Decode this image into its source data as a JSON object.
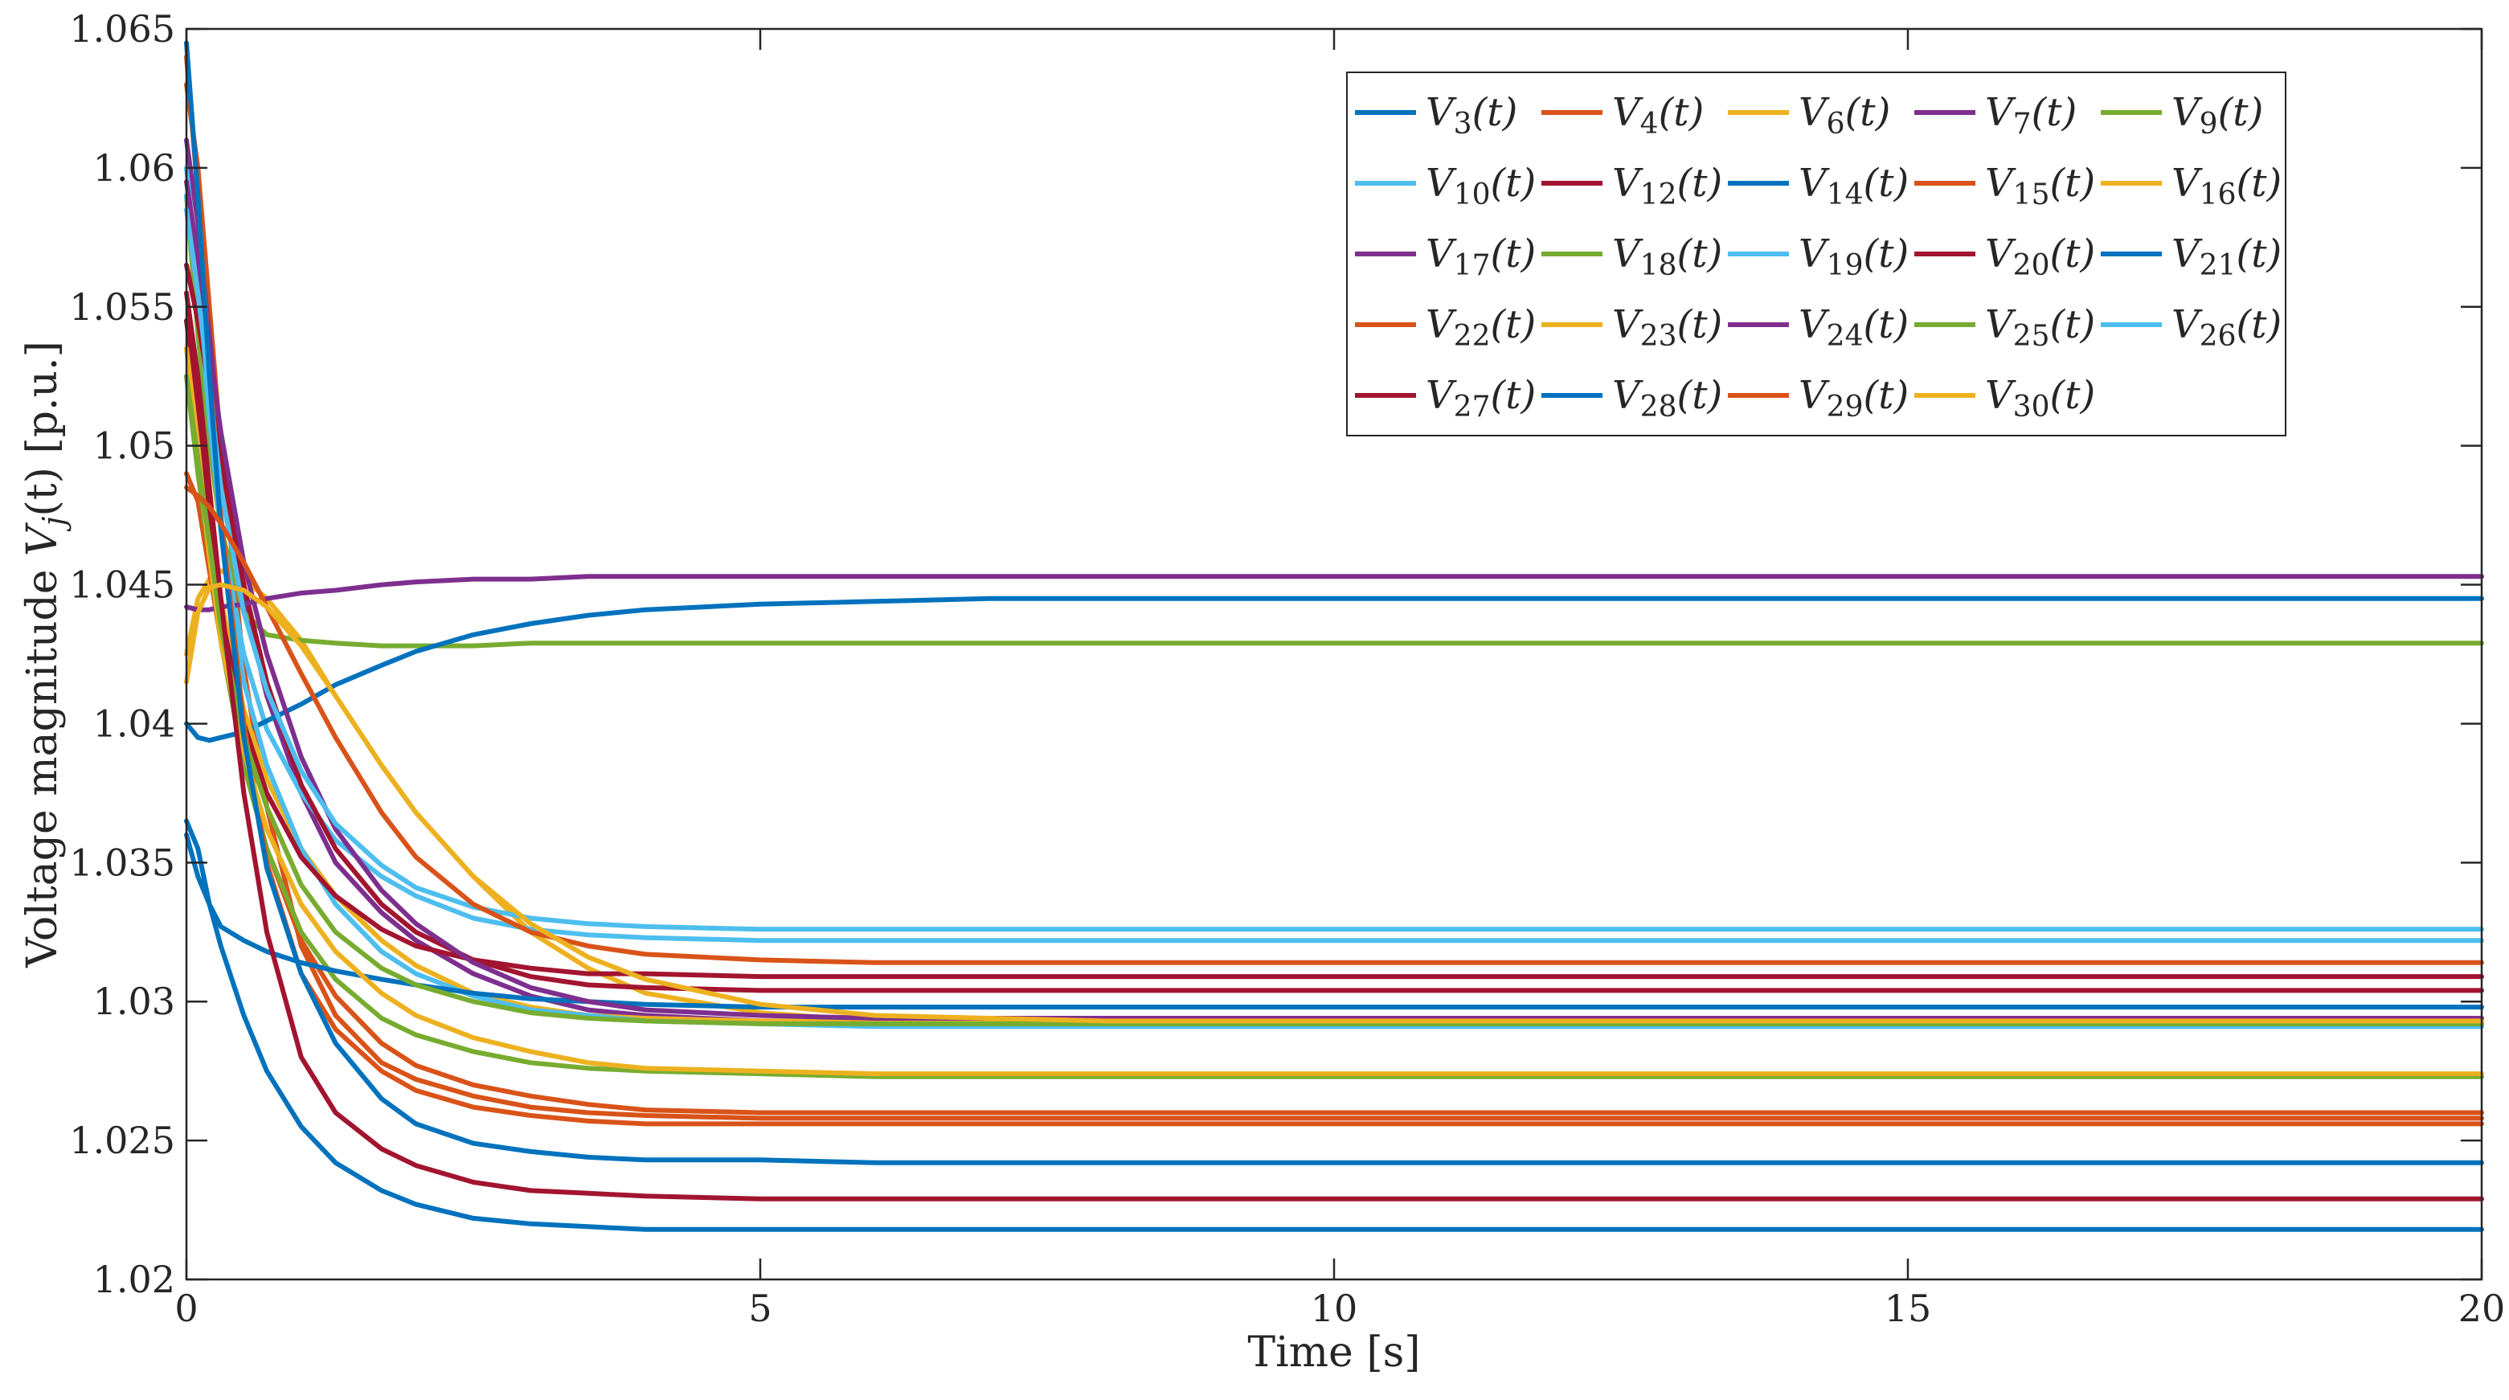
{
  "chart_data": {
    "type": "line",
    "title": "",
    "xlabel": "Time [s]",
    "ylabel": "Voltage magnitude V_j(t) [p.u.]",
    "ylabel_parts": {
      "prefix": "Voltage magnitude ",
      "var": "V",
      "sub": "j",
      "arg": "(t)",
      "suffix": " [p.u.]"
    },
    "xlim": [
      0,
      20
    ],
    "ylim": [
      1.02,
      1.065
    ],
    "xticks": [
      0,
      5,
      10,
      15,
      20
    ],
    "xtick_labels": [
      "0",
      "5",
      "10",
      "15",
      "20"
    ],
    "yticks": [
      1.02,
      1.025,
      1.03,
      1.035,
      1.04,
      1.045,
      1.05,
      1.055,
      1.06,
      1.065
    ],
    "ytick_labels": [
      "1.02",
      "1.025",
      "1.03",
      "1.035",
      "1.04",
      "1.045",
      "1.05",
      "1.055",
      "1.06",
      "1.065"
    ],
    "grid": false,
    "legend_position": "top-right",
    "legend_columns": 5,
    "x": [
      0,
      0.1,
      0.2,
      0.3,
      0.5,
      0.7,
      1.0,
      1.3,
      1.7,
      2.0,
      2.5,
      3.0,
      3.5,
      4.0,
      5.0,
      6.0,
      7.0,
      8.0,
      10.0,
      12.0,
      15.0,
      20.0
    ],
    "series": [
      {
        "name": "V",
        "sub": "3",
        "arg": "(t)",
        "color": "#0072BD",
        "values": [
          1.0365,
          1.0355,
          1.0335,
          1.032,
          1.0295,
          1.0275,
          1.0255,
          1.0242,
          1.0232,
          1.0227,
          1.0222,
          1.022,
          1.0219,
          1.0218,
          1.0218,
          1.0218,
          1.0218,
          1.0218,
          1.0218,
          1.0218,
          1.0218,
          1.0218
        ]
      },
      {
        "name": "V",
        "sub": "4",
        "arg": "(t)",
        "color": "#D95319",
        "values": [
          1.063,
          1.06,
          1.055,
          1.05,
          1.042,
          1.037,
          1.032,
          1.0295,
          1.0278,
          1.0272,
          1.0266,
          1.0262,
          1.026,
          1.0259,
          1.0258,
          1.0258,
          1.0258,
          1.0258,
          1.0258,
          1.0258,
          1.0258,
          1.0258
        ]
      },
      {
        "name": "V",
        "sub": "6",
        "arg": "(t)",
        "color": "#EDB120",
        "values": [
          1.0425,
          1.0445,
          1.0452,
          1.0455,
          1.0452,
          1.0445,
          1.043,
          1.041,
          1.0385,
          1.0368,
          1.0345,
          1.0325,
          1.0312,
          1.0303,
          1.0296,
          1.0293,
          1.0292,
          1.0292,
          1.0292,
          1.0292,
          1.0292,
          1.0292
        ]
      },
      {
        "name": "V",
        "sub": "7",
        "arg": "(t)",
        "color": "#7E2F8E",
        "values": [
          1.061,
          1.058,
          1.054,
          1.05,
          1.0445,
          1.041,
          1.0375,
          1.035,
          1.0332,
          1.0322,
          1.031,
          1.0302,
          1.0297,
          1.0295,
          1.0293,
          1.0293,
          1.0293,
          1.0293,
          1.0293,
          1.0293,
          1.0293,
          1.0293
        ]
      },
      {
        "name": "V",
        "sub": "9",
        "arg": "(t)",
        "color": "#77AC30",
        "values": [
          1.059,
          1.054,
          1.05,
          1.047,
          1.044,
          1.0432,
          1.043,
          1.0429,
          1.0428,
          1.0428,
          1.0428,
          1.0429,
          1.0429,
          1.0429,
          1.0429,
          1.0429,
          1.0429,
          1.0429,
          1.0429,
          1.0429,
          1.0429,
          1.0429
        ]
      },
      {
        "name": "V",
        "sub": "10",
        "arg": "(t)",
        "color": "#4DBEEE",
        "values": [
          1.059,
          1.0555,
          1.051,
          1.047,
          1.0425,
          1.0398,
          1.0375,
          1.0358,
          1.0345,
          1.0338,
          1.033,
          1.0326,
          1.0324,
          1.0323,
          1.0322,
          1.0322,
          1.0322,
          1.0322,
          1.0322,
          1.0322,
          1.0322,
          1.0322
        ]
      },
      {
        "name": "V",
        "sub": "12",
        "arg": "(t)",
        "color": "#A2142F",
        "values": [
          1.0565,
          1.0545,
          1.052,
          1.0495,
          1.045,
          1.0415,
          1.0378,
          1.0355,
          1.0335,
          1.0325,
          1.0315,
          1.0309,
          1.0306,
          1.0305,
          1.0304,
          1.0304,
          1.0304,
          1.0304,
          1.0304,
          1.0304,
          1.0304,
          1.0304
        ]
      },
      {
        "name": "V",
        "sub": "14",
        "arg": "(t)",
        "color": "#0072BD",
        "values": [
          1.04,
          1.0395,
          1.0394,
          1.0395,
          1.0397,
          1.0401,
          1.0407,
          1.0414,
          1.0421,
          1.0426,
          1.0432,
          1.0436,
          1.0439,
          1.0441,
          1.0443,
          1.0444,
          1.0445,
          1.0445,
          1.0445,
          1.0445,
          1.0445,
          1.0445
        ]
      },
      {
        "name": "V",
        "sub": "15",
        "arg": "(t)",
        "color": "#D95319",
        "values": [
          1.049,
          1.048,
          1.0455,
          1.043,
          1.0385,
          1.0355,
          1.0322,
          1.0302,
          1.0285,
          1.0277,
          1.027,
          1.0266,
          1.0263,
          1.0261,
          1.026,
          1.026,
          1.026,
          1.026,
          1.026,
          1.026,
          1.026,
          1.026
        ]
      },
      {
        "name": "V",
        "sub": "16",
        "arg": "(t)",
        "color": "#EDB120",
        "values": [
          1.0545,
          1.0515,
          1.048,
          1.0445,
          1.0405,
          1.038,
          1.0355,
          1.0338,
          1.0322,
          1.0313,
          1.0303,
          1.0298,
          1.0295,
          1.0294,
          1.0293,
          1.0293,
          1.0293,
          1.0293,
          1.0293,
          1.0293,
          1.0293,
          1.0293
        ]
      },
      {
        "name": "V",
        "sub": "17",
        "arg": "(t)",
        "color": "#7E2F8E",
        "values": [
          1.0442,
          1.0441,
          1.0441,
          1.0442,
          1.0443,
          1.0445,
          1.0447,
          1.0448,
          1.045,
          1.0451,
          1.0452,
          1.0452,
          1.0453,
          1.0453,
          1.0453,
          1.0453,
          1.0453,
          1.0453,
          1.0453,
          1.0453,
          1.0453,
          1.0453
        ]
      },
      {
        "name": "V",
        "sub": "18",
        "arg": "(t)",
        "color": "#77AC30",
        "values": [
          1.0525,
          1.049,
          1.046,
          1.043,
          1.0385,
          1.0355,
          1.0325,
          1.0308,
          1.0294,
          1.0288,
          1.0282,
          1.0278,
          1.0276,
          1.0275,
          1.0274,
          1.0273,
          1.0273,
          1.0273,
          1.0273,
          1.0273,
          1.0273,
          1.0273
        ]
      },
      {
        "name": "V",
        "sub": "19",
        "arg": "(t)",
        "color": "#4DBEEE",
        "values": [
          1.06,
          1.056,
          1.0515,
          1.047,
          1.0415,
          1.0385,
          1.0355,
          1.0335,
          1.0318,
          1.031,
          1.0302,
          1.0297,
          1.0295,
          1.0293,
          1.0292,
          1.0291,
          1.0291,
          1.0291,
          1.0291,
          1.0291,
          1.0291,
          1.0291
        ]
      },
      {
        "name": "V",
        "sub": "20",
        "arg": "(t)",
        "color": "#A2142F",
        "values": [
          1.0545,
          1.0515,
          1.0475,
          1.044,
          1.04,
          1.0375,
          1.0352,
          1.0338,
          1.0326,
          1.032,
          1.0315,
          1.0312,
          1.031,
          1.031,
          1.0309,
          1.0309,
          1.0309,
          1.0309,
          1.0309,
          1.0309,
          1.0309,
          1.0309
        ]
      },
      {
        "name": "V",
        "sub": "21",
        "arg": "(t)",
        "color": "#0072BD",
        "values": [
          1.036,
          1.0345,
          1.0335,
          1.0327,
          1.0322,
          1.0318,
          1.0314,
          1.0311,
          1.0308,
          1.0306,
          1.0303,
          1.0301,
          1.03,
          1.0299,
          1.0298,
          1.0298,
          1.0298,
          1.0298,
          1.0298,
          1.0298,
          1.0298,
          1.0298
        ]
      },
      {
        "name": "V",
        "sub": "22",
        "arg": "(t)",
        "color": "#D95319",
        "values": [
          1.064,
          1.059,
          1.053,
          1.0475,
          1.04,
          1.035,
          1.031,
          1.029,
          1.0275,
          1.0268,
          1.0262,
          1.0259,
          1.0257,
          1.0256,
          1.0256,
          1.0256,
          1.0256,
          1.0256,
          1.0256,
          1.0256,
          1.0256,
          1.0256
        ]
      },
      {
        "name": "V",
        "sub": "23",
        "arg": "(t)",
        "color": "#EDB120",
        "values": [
          1.0535,
          1.05,
          1.046,
          1.043,
          1.039,
          1.0362,
          1.0335,
          1.0318,
          1.0303,
          1.0295,
          1.0287,
          1.0282,
          1.0278,
          1.0276,
          1.0275,
          1.0274,
          1.0274,
          1.0274,
          1.0274,
          1.0274,
          1.0274,
          1.0274
        ]
      },
      {
        "name": "V",
        "sub": "24",
        "arg": "(t)",
        "color": "#7E2F8E",
        "values": [
          1.0595,
          1.0568,
          1.0535,
          1.0505,
          1.0458,
          1.0425,
          1.0388,
          1.0362,
          1.034,
          1.0328,
          1.0314,
          1.0305,
          1.03,
          1.0297,
          1.0295,
          1.0294,
          1.0294,
          1.0294,
          1.0294,
          1.0294,
          1.0294,
          1.0294
        ]
      },
      {
        "name": "V",
        "sub": "25",
        "arg": "(t)",
        "color": "#77AC30",
        "values": [
          1.0525,
          1.0495,
          1.0465,
          1.0435,
          1.0395,
          1.037,
          1.0342,
          1.0325,
          1.0312,
          1.0306,
          1.03,
          1.0296,
          1.0294,
          1.0293,
          1.0292,
          1.0292,
          1.0292,
          1.0292,
          1.0292,
          1.0292,
          1.0292,
          1.0292
        ]
      },
      {
        "name": "V",
        "sub": "26",
        "arg": "(t)",
        "color": "#4DBEEE",
        "values": [
          1.0585,
          1.0555,
          1.052,
          1.0485,
          1.044,
          1.0412,
          1.0383,
          1.0364,
          1.0349,
          1.0341,
          1.0334,
          1.033,
          1.0328,
          1.0327,
          1.0326,
          1.0326,
          1.0326,
          1.0326,
          1.0326,
          1.0326,
          1.0326,
          1.0326
        ]
      },
      {
        "name": "V",
        "sub": "27",
        "arg": "(t)",
        "color": "#A2142F",
        "values": [
          1.0555,
          1.0525,
          1.0485,
          1.0445,
          1.0375,
          1.0325,
          1.028,
          1.026,
          1.0247,
          1.0241,
          1.0235,
          1.0232,
          1.0231,
          1.023,
          1.0229,
          1.0229,
          1.0229,
          1.0229,
          1.0229,
          1.0229,
          1.0229,
          1.0229
        ]
      },
      {
        "name": "V",
        "sub": "28",
        "arg": "(t)",
        "color": "#0072BD",
        "values": [
          1.0645,
          1.059,
          1.0525,
          1.047,
          1.0395,
          1.0348,
          1.031,
          1.0285,
          1.0265,
          1.0256,
          1.0249,
          1.0246,
          1.0244,
          1.0243,
          1.0243,
          1.0242,
          1.0242,
          1.0242,
          1.0242,
          1.0242,
          1.0242,
          1.0242
        ]
      },
      {
        "name": "V",
        "sub": "29",
        "arg": "(t)",
        "color": "#D95319",
        "values": [
          1.0485,
          1.0482,
          1.0478,
          1.0472,
          1.0458,
          1.0442,
          1.0418,
          1.0395,
          1.0368,
          1.0352,
          1.0335,
          1.0325,
          1.032,
          1.0317,
          1.0315,
          1.0314,
          1.0314,
          1.0314,
          1.0314,
          1.0314,
          1.0314,
          1.0314
        ]
      },
      {
        "name": "V",
        "sub": "30",
        "arg": "(t)",
        "color": "#EDB120",
        "values": [
          1.0415,
          1.044,
          1.0449,
          1.045,
          1.0448,
          1.0442,
          1.0428,
          1.041,
          1.0385,
          1.0368,
          1.0345,
          1.0328,
          1.0316,
          1.0308,
          1.0299,
          1.0295,
          1.0294,
          1.0293,
          1.0293,
          1.0293,
          1.0293,
          1.0293
        ]
      }
    ]
  }
}
